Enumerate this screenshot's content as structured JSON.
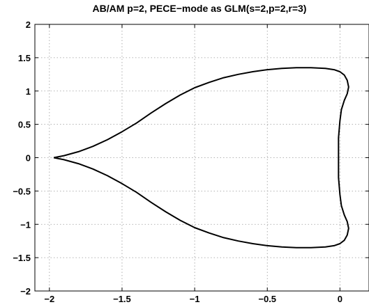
{
  "chart_data": {
    "type": "line",
    "title": "AB/AM p=2, PECE−mode as GLM(s=2,p=2,r=3)",
    "xlabel": "",
    "ylabel": "",
    "xlim": [
      -2.1,
      0.2
    ],
    "ylim": [
      -2,
      2
    ],
    "grid": true,
    "x_ticks": [
      -2,
      -1.5,
      -1,
      -0.5,
      0
    ],
    "x_tick_labels": [
      "−2",
      "−1.5",
      "−1",
      "−0.5",
      "0"
    ],
    "y_ticks": [
      2,
      1.5,
      1,
      0.5,
      0,
      -0.5,
      -1,
      -1.5,
      -2
    ],
    "y_tick_labels": [
      "2",
      "1.5",
      "1",
      "0.5",
      "0",
      "−0.5",
      "−1",
      "−1.5",
      "−2"
    ],
    "series": [
      {
        "color": "#000000",
        "x": [
          -1.97,
          -1.9,
          -1.8,
          -1.7,
          -1.6,
          -1.5,
          -1.4,
          -1.3,
          -1.2,
          -1.1,
          -1.0,
          -0.9,
          -0.8,
          -0.7,
          -0.6,
          -0.5,
          -0.4,
          -0.3,
          -0.25,
          -0.2,
          -0.1,
          -0.04,
          0.0,
          0.03,
          0.05,
          0.06,
          0.05,
          0.03,
          0.01,
          0.0,
          -0.01,
          -0.01,
          0.0,
          0.01,
          0.03,
          0.05,
          0.06,
          0.05,
          0.03,
          0.0,
          -0.04,
          -0.1,
          -0.2,
          -0.25,
          -0.3,
          -0.4,
          -0.5,
          -0.6,
          -0.7,
          -0.8,
          -0.9,
          -1.0,
          -1.1,
          -1.2,
          -1.3,
          -1.4,
          -1.5,
          -1.6,
          -1.7,
          -1.8,
          -1.9,
          -1.97
        ],
        "y": [
          0.0,
          0.03,
          0.09,
          0.17,
          0.27,
          0.39,
          0.52,
          0.67,
          0.81,
          0.94,
          1.05,
          1.13,
          1.2,
          1.25,
          1.29,
          1.32,
          1.34,
          1.35,
          1.35,
          1.35,
          1.34,
          1.32,
          1.29,
          1.24,
          1.16,
          1.06,
          0.96,
          0.86,
          0.72,
          0.55,
          0.3,
          -0.3,
          -0.55,
          -0.72,
          -0.86,
          -0.96,
          -1.06,
          -1.16,
          -1.24,
          -1.29,
          -1.32,
          -1.34,
          -1.35,
          -1.35,
          -1.35,
          -1.34,
          -1.32,
          -1.29,
          -1.25,
          -1.2,
          -1.13,
          -1.05,
          -0.94,
          -0.81,
          -0.67,
          -0.52,
          -0.39,
          -0.27,
          -0.17,
          -0.09,
          -0.03,
          0.0
        ]
      }
    ]
  }
}
